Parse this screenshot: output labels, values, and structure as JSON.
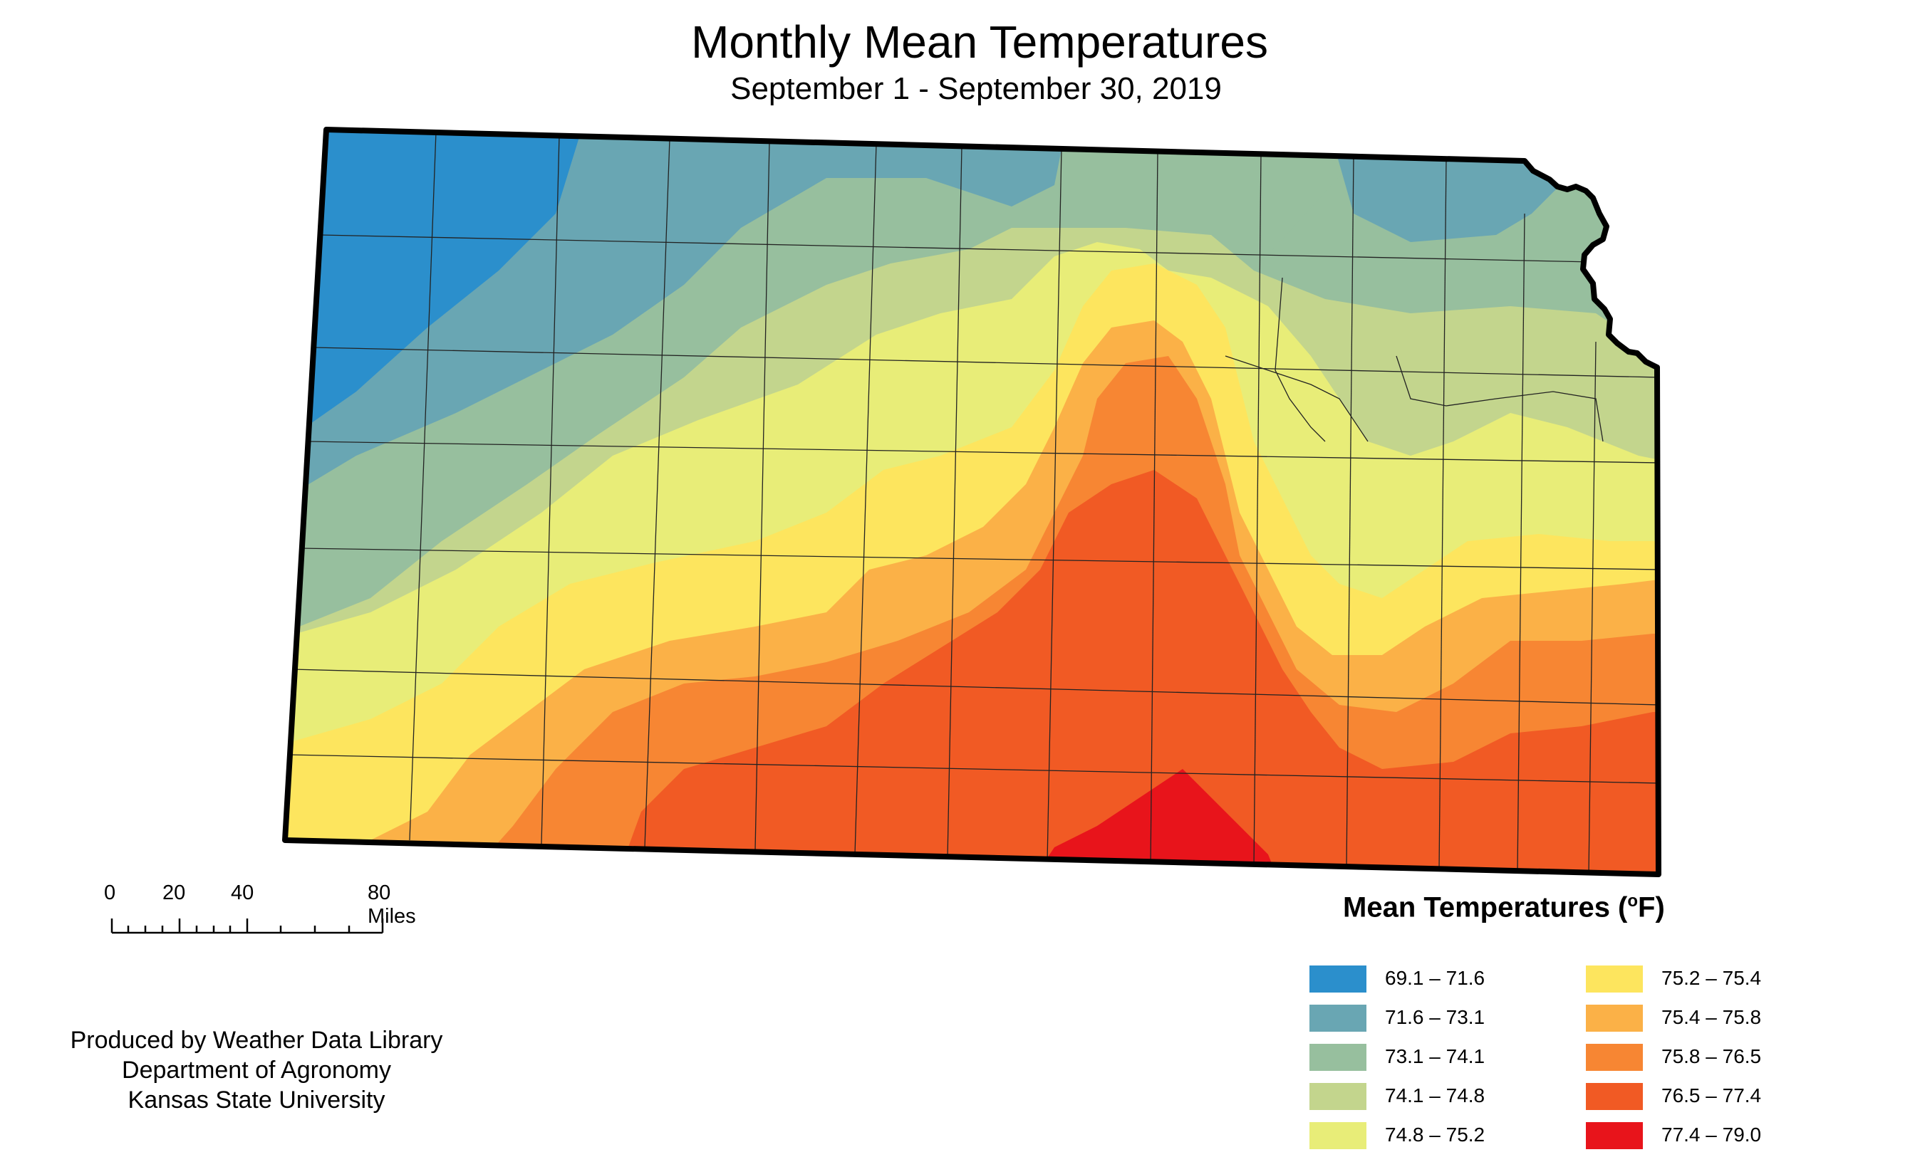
{
  "map": {
    "title": "Monthly Mean Temperatures",
    "subtitle": "September 1 - September 30, 2019"
  },
  "scale_bar": {
    "labels": [
      "0",
      "20",
      "40",
      "80 Miles"
    ]
  },
  "credit": {
    "line1": "Produced by Weather Data Library",
    "line2": "Department of Agronomy",
    "line3": "Kansas State University"
  },
  "legend": {
    "title_prefix": "Mean Temperatures (",
    "title_degree": "o",
    "title_suffix": "F)",
    "items": [
      {
        "label": "69.1 – 71.6",
        "color": "#2b8fcc"
      },
      {
        "label": "71.6 – 73.1",
        "color": "#69a6b3"
      },
      {
        "label": "73.1 – 74.1",
        "color": "#97bf9e"
      },
      {
        "label": "74.1 – 74.8",
        "color": "#c3d58d"
      },
      {
        "label": "74.8 – 75.2",
        "color": "#e8ed78"
      },
      {
        "label": "75.2 – 75.4",
        "color": "#fde55e"
      },
      {
        "label": "75.4 – 75.8",
        "color": "#fbb147"
      },
      {
        "label": "75.8 – 76.5",
        "color": "#f78633"
      },
      {
        "label": "76.5 – 77.4",
        "color": "#f15a24"
      },
      {
        "label": "77.4 – 79.0",
        "color": "#e8141b"
      }
    ]
  }
}
